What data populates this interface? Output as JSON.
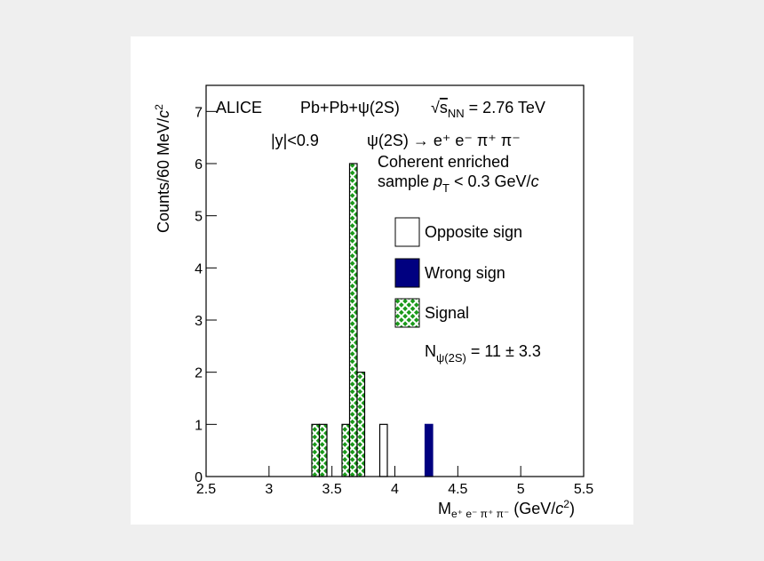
{
  "chart_data": {
    "type": "histogram",
    "bins": [
      2.5,
      2.56,
      2.62,
      2.68,
      2.74,
      2.8,
      2.86,
      2.92,
      2.98,
      3.04,
      3.1,
      3.16,
      3.22,
      3.28,
      3.34,
      3.4,
      3.46,
      3.52,
      3.58,
      3.64,
      3.7,
      3.76,
      3.82,
      3.88,
      3.94,
      4,
      4.06,
      4.12,
      4.18,
      4.24,
      4.3,
      4.36,
      4.42,
      4.48,
      4.54,
      4.6,
      4.66,
      4.72,
      4.78,
      4.84,
      4.9,
      4.96,
      5.02,
      5.08,
      5.14,
      5.2,
      5.26,
      5.32,
      5.38,
      5.44,
      5.5
    ],
    "series": [
      {
        "name": "Opposite sign",
        "color": "#ffffff",
        "values": [
          0,
          0,
          0,
          0,
          0,
          0,
          0,
          0,
          0,
          0,
          0,
          0,
          0,
          0,
          0,
          0,
          0,
          0,
          0,
          0,
          0,
          0,
          0,
          1,
          0,
          0,
          0,
          0,
          0,
          0,
          0,
          0,
          0,
          0,
          0,
          0,
          0,
          0,
          0,
          0,
          0,
          0,
          0,
          0,
          0,
          0,
          0,
          0,
          0,
          0
        ]
      },
      {
        "name": "Wrong sign",
        "color": "#000080",
        "values": [
          0,
          0,
          0,
          0,
          0,
          0,
          0,
          0,
          0,
          0,
          0,
          0,
          0,
          0,
          0,
          0,
          0,
          0,
          0,
          0,
          0,
          0,
          0,
          0,
          0,
          0,
          0,
          0,
          0,
          1,
          0,
          0,
          0,
          0,
          0,
          0,
          0,
          0,
          0,
          0,
          0,
          0,
          0,
          0,
          0,
          0,
          0,
          0,
          0,
          0
        ]
      },
      {
        "name": "Signal",
        "color": "#1a9a1a",
        "values": [
          0,
          0,
          0,
          0,
          0,
          0,
          0,
          0,
          0,
          0,
          0,
          0,
          0,
          0,
          1,
          1,
          0,
          0,
          1,
          6,
          2,
          0,
          0,
          0,
          0,
          0,
          0,
          0,
          0,
          0,
          0,
          0,
          0,
          0,
          0,
          0,
          0,
          0,
          0,
          0,
          0,
          0,
          0,
          0,
          0,
          0,
          0,
          0,
          0,
          0
        ]
      }
    ],
    "xlim": [
      2.5,
      5.5
    ],
    "ylim": [
      0,
      7.5
    ],
    "xticks": [
      2.5,
      3,
      3.5,
      4,
      4.5,
      5,
      5.5
    ],
    "yticks": [
      0,
      1,
      2,
      3,
      4,
      5,
      6,
      7
    ],
    "xlabel": [
      "M",
      "e⁺ e⁻ π⁺ π⁻",
      " (GeV/",
      "c",
      "2",
      ")"
    ],
    "ylabel": [
      "Counts/60 MeV/",
      "c",
      "2"
    ],
    "annotations": {
      "experiment": "ALICE",
      "system": "Pb+Pb+ψ(2S)",
      "energy": [
        "√",
        "s",
        "NN",
        " = 2.76 TeV"
      ],
      "rapidity": "|y|<0.9",
      "decay": "ψ(2S) → e⁺ e⁻ π⁺ π⁻",
      "selection1": "Coherent enriched",
      "selection2": [
        "sample ",
        "p",
        "T",
        " < 0.3 GeV/",
        "c"
      ],
      "yield": [
        "N",
        "ψ(2S)",
        " = 11 ± 3.3"
      ]
    }
  }
}
